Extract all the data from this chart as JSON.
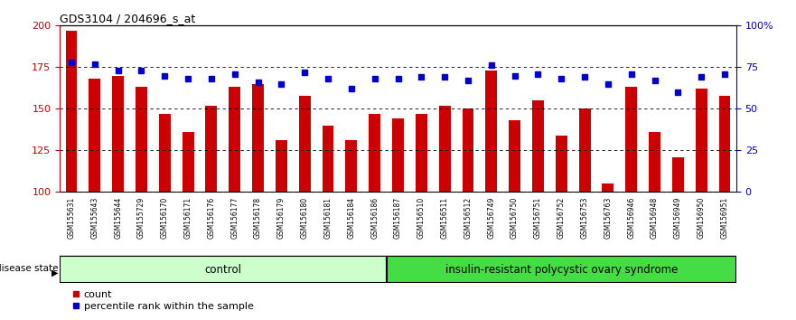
{
  "title": "GDS3104 / 204696_s_at",
  "samples": [
    "GSM155631",
    "GSM155643",
    "GSM155644",
    "GSM155729",
    "GSM156170",
    "GSM156171",
    "GSM156176",
    "GSM156177",
    "GSM156178",
    "GSM156179",
    "GSM156180",
    "GSM156181",
    "GSM156184",
    "GSM156186",
    "GSM156187",
    "GSM156510",
    "GSM156511",
    "GSM156512",
    "GSM156749",
    "GSM156750",
    "GSM156751",
    "GSM156752",
    "GSM156753",
    "GSM156763",
    "GSM156946",
    "GSM156948",
    "GSM156949",
    "GSM156950",
    "GSM156951"
  ],
  "counts": [
    197,
    168,
    170,
    163,
    147,
    136,
    152,
    163,
    165,
    131,
    158,
    140,
    131,
    147,
    144,
    147,
    152,
    150,
    173,
    143,
    155,
    134,
    150,
    105,
    163,
    136,
    121,
    162,
    158
  ],
  "percentile_ranks": [
    78,
    77,
    73,
    73,
    70,
    68,
    68,
    71,
    66,
    65,
    72,
    68,
    62,
    68,
    68,
    69,
    69,
    67,
    76,
    70,
    71,
    68,
    69,
    65,
    71,
    67,
    60,
    69,
    71
  ],
  "control_count": 14,
  "disease_count": 15,
  "bar_color": "#cc0000",
  "dot_color": "#0000cc",
  "ylim_left": [
    100,
    200
  ],
  "ylim_right": [
    0,
    100
  ],
  "yticks_left": [
    100,
    125,
    150,
    175,
    200
  ],
  "ytick_labels_left": [
    "100",
    "125",
    "150",
    "175",
    "200"
  ],
  "yticks_right": [
    0,
    25,
    50,
    75,
    100
  ],
  "ytick_labels_right": [
    "0",
    "25",
    "50",
    "75",
    "100%"
  ],
  "control_label": "control",
  "disease_label": "insulin-resistant polycystic ovary syndrome",
  "disease_state_label": "disease state",
  "legend_count": "count",
  "legend_percentile": "percentile rank within the sample",
  "control_color": "#ccffcc",
  "disease_color": "#44dd44",
  "label_bg_color": "#cccccc",
  "plot_bg": "#ffffff",
  "bar_width": 0.5
}
